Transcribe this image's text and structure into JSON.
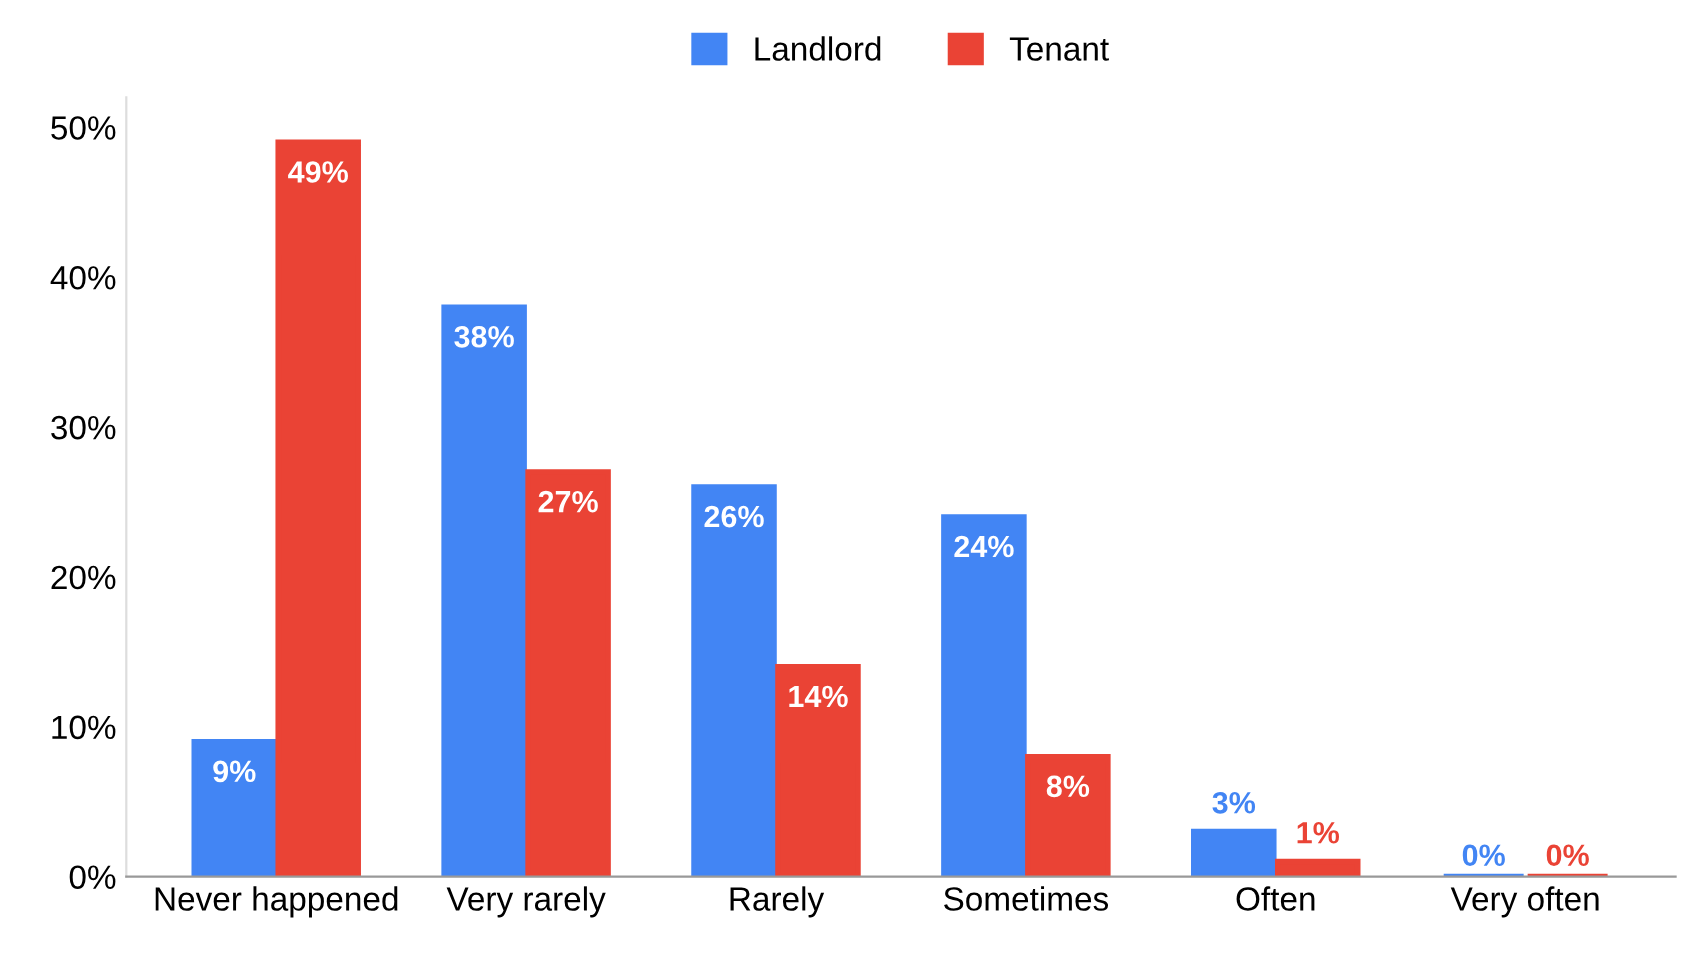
{
  "chart_data": {
    "type": "bar",
    "categories": [
      "Never happened",
      "Very rarely",
      "Rarely",
      "Sometimes",
      "Often",
      "Very often"
    ],
    "series": [
      {
        "name": "Landlord",
        "color": "#4285f4",
        "values": [
          9,
          38,
          26,
          24,
          3,
          0
        ],
        "value_labels": [
          "9%",
          "38%",
          "26%",
          "24%",
          "3%",
          "0%"
        ]
      },
      {
        "name": "Tenant",
        "color": "#ea4335",
        "values": [
          49,
          27,
          14,
          8,
          1,
          0
        ],
        "value_labels": [
          "49%",
          "27%",
          "14%",
          "8%",
          "1%",
          "0%"
        ]
      }
    ],
    "ylim": [
      0,
      52
    ],
    "yticks": [
      {
        "value": 0,
        "label": "0%"
      },
      {
        "value": 10,
        "label": "10%"
      },
      {
        "value": 20,
        "label": "20%"
      },
      {
        "value": 30,
        "label": "30%"
      },
      {
        "value": 40,
        "label": "40%"
      },
      {
        "value": 50,
        "label": "50%"
      }
    ],
    "legend": "top",
    "grid": false
  }
}
